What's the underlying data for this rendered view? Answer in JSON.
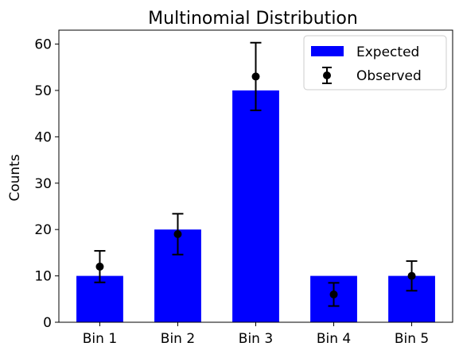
{
  "chart_data": {
    "type": "bar",
    "title": "Multinomial Distribution",
    "xlabel": "",
    "ylabel": "Counts",
    "categories": [
      "Bin 1",
      "Bin 2",
      "Bin 3",
      "Bin 4",
      "Bin 5"
    ],
    "ylim": [
      0,
      63
    ],
    "yticks": [
      0,
      10,
      20,
      30,
      40,
      50,
      60
    ],
    "grid": false,
    "legend_placement": "top-right",
    "series": [
      {
        "name": "Expected",
        "kind": "bar",
        "color": "#0000ff",
        "values": [
          10,
          20,
          50,
          10,
          10
        ]
      },
      {
        "name": "Observed",
        "kind": "errorbar",
        "color": "#000000",
        "values": [
          12,
          19,
          53,
          6,
          10
        ],
        "lower": [
          8.6,
          14.6,
          45.7,
          3.5,
          6.8
        ],
        "upper": [
          15.4,
          23.4,
          60.3,
          8.5,
          13.2
        ]
      }
    ]
  }
}
